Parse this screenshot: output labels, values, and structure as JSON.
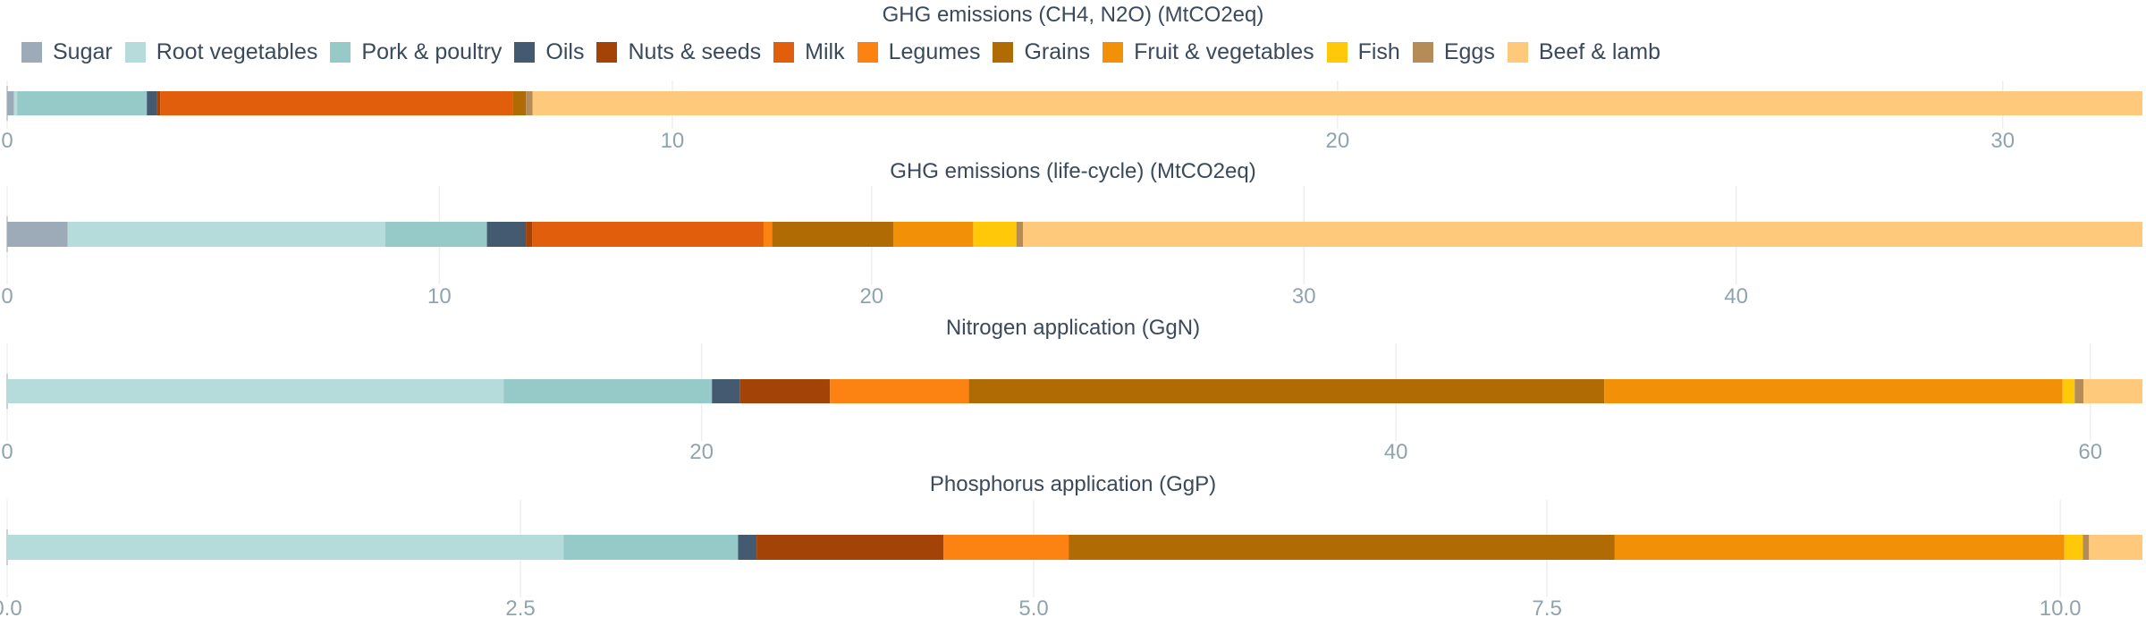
{
  "legend": {
    "items": [
      {
        "label": "Sugar",
        "color": "#9daab8"
      },
      {
        "label": "Root vegetables",
        "color": "#b5dbdb"
      },
      {
        "label": "Pork & poultry",
        "color": "#96cac9"
      },
      {
        "label": "Oils",
        "color": "#445a70"
      },
      {
        "label": "Nuts & seeds",
        "color": "#a34308"
      },
      {
        "label": "Milk",
        "color": "#e05e0c"
      },
      {
        "label": "Legumes",
        "color": "#fc8212"
      },
      {
        "label": "Grains",
        "color": "#b06b04"
      },
      {
        "label": "Fruit & vegetables",
        "color": "#f29108"
      },
      {
        "label": "Fish",
        "color": "#ffc808"
      },
      {
        "label": "Eggs",
        "color": "#b58c58"
      },
      {
        "label": "Beef & lamb",
        "color": "#ffc97b"
      }
    ]
  },
  "chart_data": [
    {
      "type": "bar",
      "orientation": "horizontal",
      "stacked": true,
      "title": "GHG emissions (CH4, N2O) (MtCO2eq)",
      "xlim": [
        0,
        32.1
      ],
      "xticks": [
        "0",
        "10",
        "20",
        "30"
      ],
      "tick_values": [
        0,
        10,
        20,
        30
      ],
      "grid": true,
      "legend_position": "top",
      "series": [
        {
          "name": "Sugar",
          "value": 0.1
        },
        {
          "name": "Root vegetables",
          "value": 0.05
        },
        {
          "name": "Pork & poultry",
          "value": 1.95
        },
        {
          "name": "Oils",
          "value": 0.15
        },
        {
          "name": "Nuts & seeds",
          "value": 0.05
        },
        {
          "name": "Milk",
          "value": 5.3
        },
        {
          "name": "Legumes",
          "value": 0.0
        },
        {
          "name": "Grains",
          "value": 0.2
        },
        {
          "name": "Fruit & vegetables",
          "value": 0.0
        },
        {
          "name": "Fish",
          "value": 0.0
        },
        {
          "name": "Eggs",
          "value": 0.1
        },
        {
          "name": "Beef & lamb",
          "value": 24.2
        }
      ]
    },
    {
      "type": "bar",
      "orientation": "horizontal",
      "stacked": true,
      "title": "GHG emissions (life-cycle) (MtCO2eq)",
      "xlim": [
        0,
        49.4
      ],
      "xticks": [
        "0",
        "10",
        "20",
        "30",
        "40"
      ],
      "tick_values": [
        0,
        10,
        20,
        30,
        40
      ],
      "grid": true,
      "series": [
        {
          "name": "Sugar",
          "value": 1.4
        },
        {
          "name": "Root vegetables",
          "value": 7.35
        },
        {
          "name": "Pork & poultry",
          "value": 2.35
        },
        {
          "name": "Oils",
          "value": 0.9
        },
        {
          "name": "Nuts & seeds",
          "value": 0.15
        },
        {
          "name": "Milk",
          "value": 5.35
        },
        {
          "name": "Legumes",
          "value": 0.2
        },
        {
          "name": "Grains",
          "value": 2.8
        },
        {
          "name": "Fruit & vegetables",
          "value": 1.85
        },
        {
          "name": "Fish",
          "value": 1.0
        },
        {
          "name": "Eggs",
          "value": 0.15
        },
        {
          "name": "Beef & lamb",
          "value": 25.9
        }
      ]
    },
    {
      "type": "bar",
      "orientation": "horizontal",
      "stacked": true,
      "title": "Nitrogen application (GgN)",
      "xlim": [
        0,
        61.5
      ],
      "xticks": [
        "0",
        "20",
        "40",
        "60"
      ],
      "tick_values": [
        0,
        20,
        40,
        60
      ],
      "grid": true,
      "series": [
        {
          "name": "Sugar",
          "value": 0.0
        },
        {
          "name": "Root vegetables",
          "value": 14.3
        },
        {
          "name": "Pork & poultry",
          "value": 6.0
        },
        {
          "name": "Oils",
          "value": 0.8
        },
        {
          "name": "Nuts & seeds",
          "value": 2.6
        },
        {
          "name": "Milk",
          "value": 0.0
        },
        {
          "name": "Legumes",
          "value": 4.0
        },
        {
          "name": "Grains",
          "value": 18.3
        },
        {
          "name": "Fruit & vegetables",
          "value": 13.2
        },
        {
          "name": "Fish",
          "value": 0.35
        },
        {
          "name": "Eggs",
          "value": 0.25
        },
        {
          "name": "Beef & lamb",
          "value": 1.7
        }
      ]
    },
    {
      "type": "bar",
      "orientation": "horizontal",
      "stacked": true,
      "title": "Phosphorus application (GgP)",
      "xlim": [
        0,
        10.4
      ],
      "xticks": [
        "0.0",
        "2.5",
        "5.0",
        "7.5",
        "10.0"
      ],
      "tick_values": [
        0,
        2.5,
        5,
        7.5,
        10
      ],
      "grid": true,
      "series": [
        {
          "name": "Sugar",
          "value": 0.0
        },
        {
          "name": "Root vegetables",
          "value": 2.71
        },
        {
          "name": "Pork & poultry",
          "value": 0.85
        },
        {
          "name": "Oils",
          "value": 0.09
        },
        {
          "name": "Nuts & seeds",
          "value": 0.91
        },
        {
          "name": "Milk",
          "value": 0.0
        },
        {
          "name": "Legumes",
          "value": 0.61
        },
        {
          "name": "Grains",
          "value": 2.66
        },
        {
          "name": "Fruit & vegetables",
          "value": 2.19
        },
        {
          "name": "Fish",
          "value": 0.09
        },
        {
          "name": "Eggs",
          "value": 0.03
        },
        {
          "name": "Beef & lamb",
          "value": 0.26
        }
      ]
    }
  ]
}
